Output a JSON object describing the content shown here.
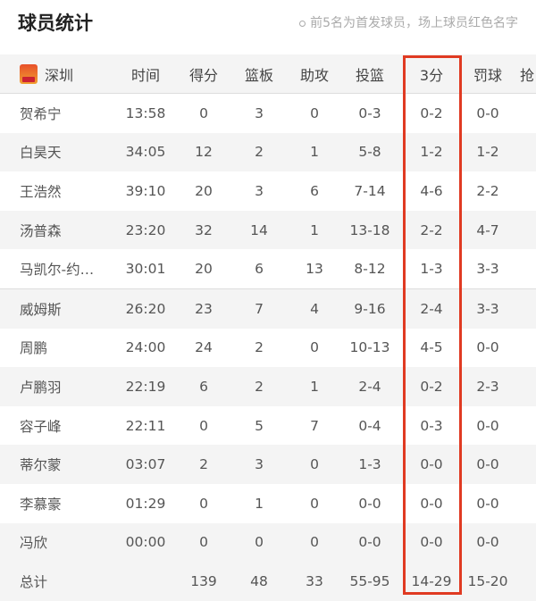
{
  "title": "球员统计",
  "note": "前5名为首发球员，场上球员红色名字",
  "team": "深圳",
  "colors": {
    "highlight": "#e03a22"
  },
  "columns": [
    "时间",
    "得分",
    "篮板",
    "助攻",
    "投篮",
    "3分",
    "罚球",
    "抢"
  ],
  "players": [
    [
      "贺希宁",
      "13:58",
      "0",
      "3",
      "0",
      "0-3",
      "0-2",
      "0-0"
    ],
    [
      "白昊天",
      "34:05",
      "12",
      "2",
      "1",
      "5-8",
      "1-2",
      "1-2"
    ],
    [
      "王浩然",
      "39:10",
      "20",
      "3",
      "6",
      "7-14",
      "4-6",
      "2-2"
    ],
    [
      "汤普森",
      "23:20",
      "32",
      "14",
      "1",
      "13-18",
      "2-2",
      "4-7"
    ],
    [
      "马凯尔-约…",
      "30:01",
      "20",
      "6",
      "13",
      "8-12",
      "1-3",
      "3-3"
    ],
    [
      "威姆斯",
      "26:20",
      "23",
      "7",
      "4",
      "9-16",
      "2-4",
      "3-3"
    ],
    [
      "周鹏",
      "24:00",
      "24",
      "2",
      "0",
      "10-13",
      "4-5",
      "0-0"
    ],
    [
      "卢鹏羽",
      "22:19",
      "6",
      "2",
      "1",
      "2-4",
      "0-2",
      "2-3"
    ],
    [
      "容子峰",
      "22:11",
      "0",
      "5",
      "7",
      "0-4",
      "0-3",
      "0-0"
    ],
    [
      "蒂尔蒙",
      "03:07",
      "2",
      "3",
      "0",
      "1-3",
      "0-0",
      "0-0"
    ],
    [
      "李慕豪",
      "01:29",
      "0",
      "1",
      "0",
      "0-0",
      "0-0",
      "0-0"
    ],
    [
      "冯欣",
      "00:00",
      "0",
      "0",
      "0",
      "0-0",
      "0-0",
      "0-0"
    ]
  ],
  "total": [
    "总计",
    "",
    "139",
    "48",
    "33",
    "55-95",
    "14-29",
    "15-20"
  ]
}
